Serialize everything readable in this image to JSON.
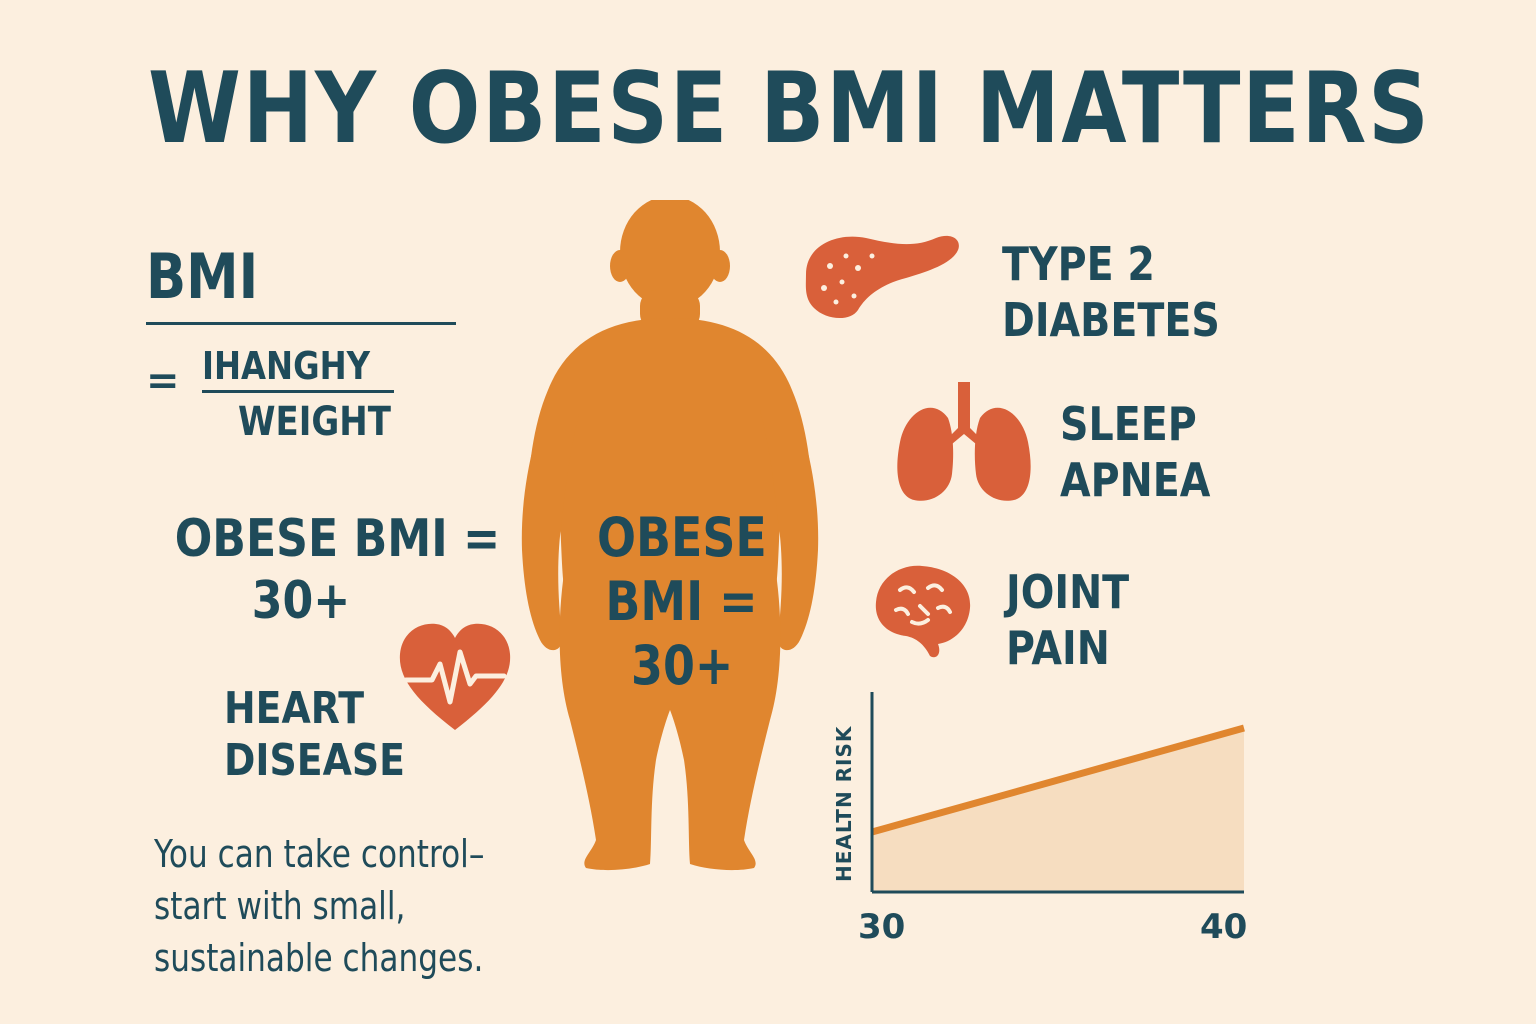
{
  "title": "WHY OBESE BMI MATTERS",
  "formula": {
    "label": "BMI",
    "equals": "=",
    "numerator": "IHANGHY",
    "denominator": "WEIGHT"
  },
  "obese_definition": {
    "line1": "OBESE BMI =",
    "line2": "30+"
  },
  "body_label": {
    "line1": "OBESE",
    "line2": "BMI =",
    "line3": "30+"
  },
  "conditions": {
    "heart": {
      "line1": "HEART",
      "line2": "DISEASE",
      "icon": "heart-pulse-icon"
    },
    "diabetes": {
      "line1": "TYPE 2",
      "line2": "DIABETES",
      "icon": "pancreas-icon"
    },
    "sleep": {
      "line1": "SLEEP",
      "line2": "APNEA",
      "icon": "lungs-icon"
    },
    "joint": {
      "line1": "JOINT",
      "line2": "PAIN",
      "icon": "brain-icon"
    }
  },
  "tagline": {
    "line1": "You can take control–",
    "line2": "start with small,",
    "line3": "sustainable changes."
  },
  "colors": {
    "background": "#fcefdf",
    "text": "#1f4b5a",
    "figure": "#e0862f",
    "icon": "#d9603a",
    "chart_fill": "#f6ddc0",
    "chart_line": "#e0862f"
  },
  "chart_data": {
    "type": "area",
    "title": "",
    "xlabel": "",
    "ylabel": "HEALTN RISK",
    "x": [
      30,
      40
    ],
    "tick_labels": [
      "30",
      "40"
    ],
    "values": [
      0.3,
      0.82
    ],
    "ylim": [
      0,
      1
    ],
    "grid": false
  }
}
